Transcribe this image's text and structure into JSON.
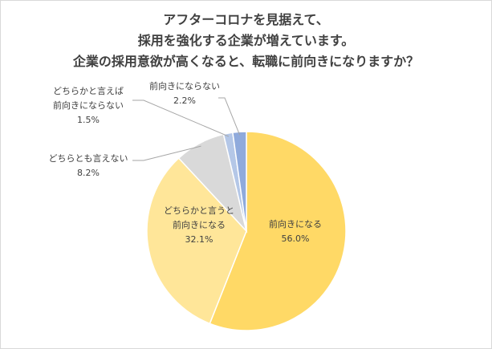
{
  "chart_data": {
    "type": "pie",
    "title_lines": [
      "アフターコロナを見据えて、",
      "採用を強化する企業が増えています。",
      "企業の採用意欲が高くなると、転職に前向きになりますか？"
    ],
    "slices": [
      {
        "label_lines": [
          "前向きになる"
        ],
        "value": 56.0,
        "value_text": "56.0%",
        "color": "#FFD966"
      },
      {
        "label_lines": [
          "どちらかと言うと",
          "前向きになる"
        ],
        "value": 32.1,
        "value_text": "32.1%",
        "color": "#FFE699"
      },
      {
        "label_lines": [
          "どちらとも言えない"
        ],
        "value": 8.2,
        "value_text": "8.2%",
        "color": "#D9D9D9"
      },
      {
        "label_lines": [
          "どちらかと言えば",
          "前向きにならない"
        ],
        "value": 1.5,
        "value_text": "1.5%",
        "color": "#B4C7E7"
      },
      {
        "label_lines": [
          "前向きにならない"
        ],
        "value": 2.2,
        "value_text": "2.2%",
        "color": "#8FAADC"
      }
    ]
  }
}
